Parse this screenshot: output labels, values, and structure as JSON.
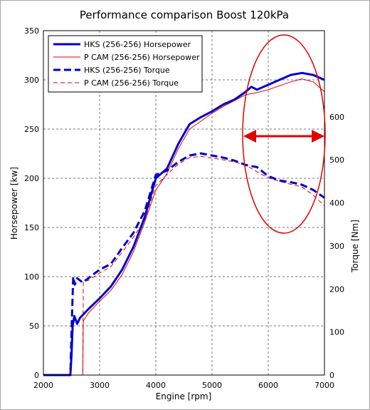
{
  "chart_data": {
    "type": "line",
    "title": "Performance comparison Boost 120kPa",
    "xlabel": "Engine [rpm]",
    "ylabel": "Horsepower [kw]",
    "y2label": "Torque [Nm]",
    "xlim": [
      2000,
      7000
    ],
    "ylim": [
      0,
      350
    ],
    "y2lim": [
      0,
      800
    ],
    "xticks": [
      "2000",
      "3000",
      "4000",
      "5000",
      "6000",
      "7000"
    ],
    "yticks": [
      "0",
      "50",
      "100",
      "150",
      "200",
      "250",
      "300",
      "350"
    ],
    "y2ticks": [
      "0",
      "100",
      "200",
      "300",
      "400",
      "500",
      "600"
    ],
    "grid": true,
    "legend_position": "top-left",
    "annotation": "red ellipse around 5600-7000 rpm with a double-headed arrow",
    "series": [
      {
        "name": "HKS (256-256) Horsepower",
        "axis": "left",
        "color": "#0000cc",
        "style": "solid-thick",
        "points": [
          [
            2000,
            0
          ],
          [
            2480,
            0
          ],
          [
            2500,
            20
          ],
          [
            2520,
            50
          ],
          [
            2550,
            60
          ],
          [
            2600,
            52
          ],
          [
            2650,
            58
          ],
          [
            2800,
            67
          ],
          [
            3000,
            78
          ],
          [
            3200,
            90
          ],
          [
            3400,
            107
          ],
          [
            3600,
            130
          ],
          [
            3800,
            160
          ],
          [
            4000,
            200
          ],
          [
            4200,
            210
          ],
          [
            4400,
            235
          ],
          [
            4600,
            255
          ],
          [
            4800,
            262
          ],
          [
            5000,
            268
          ],
          [
            5200,
            275
          ],
          [
            5400,
            280
          ],
          [
            5600,
            288
          ],
          [
            5700,
            293
          ],
          [
            5800,
            290
          ],
          [
            6000,
            295
          ],
          [
            6200,
            300
          ],
          [
            6400,
            305
          ],
          [
            6600,
            307
          ],
          [
            6800,
            305
          ],
          [
            7000,
            300
          ]
        ]
      },
      {
        "name": "P CAM (256-256) Horsepower",
        "axis": "left",
        "color": "#dd0000",
        "style": "solid-thin",
        "points": [
          [
            2000,
            0
          ],
          [
            2700,
            0
          ],
          [
            2710,
            55
          ],
          [
            2800,
            63
          ],
          [
            3000,
            75
          ],
          [
            3200,
            86
          ],
          [
            3400,
            102
          ],
          [
            3600,
            125
          ],
          [
            3800,
            155
          ],
          [
            4000,
            188
          ],
          [
            4200,
            205
          ],
          [
            4400,
            230
          ],
          [
            4600,
            250
          ],
          [
            4800,
            258
          ],
          [
            5000,
            266
          ],
          [
            5200,
            273
          ],
          [
            5400,
            279
          ],
          [
            5600,
            285
          ],
          [
            5800,
            287
          ],
          [
            6000,
            290
          ],
          [
            6200,
            294
          ],
          [
            6400,
            298
          ],
          [
            6600,
            301
          ],
          [
            6800,
            298
          ],
          [
            7000,
            288
          ]
        ]
      },
      {
        "name": "HKS (256-256) Torque",
        "axis": "right",
        "color": "#0000cc",
        "style": "dashed-thick",
        "points": [
          [
            2000,
            0
          ],
          [
            2480,
            0
          ],
          [
            2500,
            100
          ],
          [
            2530,
            228
          ],
          [
            2560,
            210
          ],
          [
            2600,
            225
          ],
          [
            2700,
            215
          ],
          [
            2800,
            225
          ],
          [
            3000,
            245
          ],
          [
            3200,
            258
          ],
          [
            3400,
            295
          ],
          [
            3600,
            330
          ],
          [
            3800,
            380
          ],
          [
            4000,
            465
          ],
          [
            4200,
            475
          ],
          [
            4400,
            495
          ],
          [
            4600,
            510
          ],
          [
            4800,
            515
          ],
          [
            5000,
            510
          ],
          [
            5200,
            505
          ],
          [
            5400,
            498
          ],
          [
            5600,
            488
          ],
          [
            5800,
            483
          ],
          [
            6000,
            462
          ],
          [
            6200,
            452
          ],
          [
            6400,
            448
          ],
          [
            6600,
            442
          ],
          [
            6800,
            430
          ],
          [
            7000,
            412
          ]
        ]
      },
      {
        "name": "P CAM (256-256) Torque",
        "axis": "right",
        "color": "#dd0000",
        "style": "dashed-thin",
        "points": [
          [
            2000,
            0
          ],
          [
            2700,
            0
          ],
          [
            2710,
            218
          ],
          [
            2800,
            220
          ],
          [
            3000,
            237
          ],
          [
            3200,
            252
          ],
          [
            3400,
            285
          ],
          [
            3600,
            320
          ],
          [
            3800,
            360
          ],
          [
            4000,
            440
          ],
          [
            4200,
            466
          ],
          [
            4400,
            490
          ],
          [
            4600,
            505
          ],
          [
            4800,
            508
          ],
          [
            5000,
            504
          ],
          [
            5200,
            500
          ],
          [
            5400,
            495
          ],
          [
            5600,
            488
          ],
          [
            5800,
            472
          ],
          [
            6000,
            458
          ],
          [
            6200,
            450
          ],
          [
            6400,
            443
          ],
          [
            6600,
            437
          ],
          [
            6800,
            418
          ],
          [
            7000,
            393
          ]
        ]
      }
    ]
  }
}
